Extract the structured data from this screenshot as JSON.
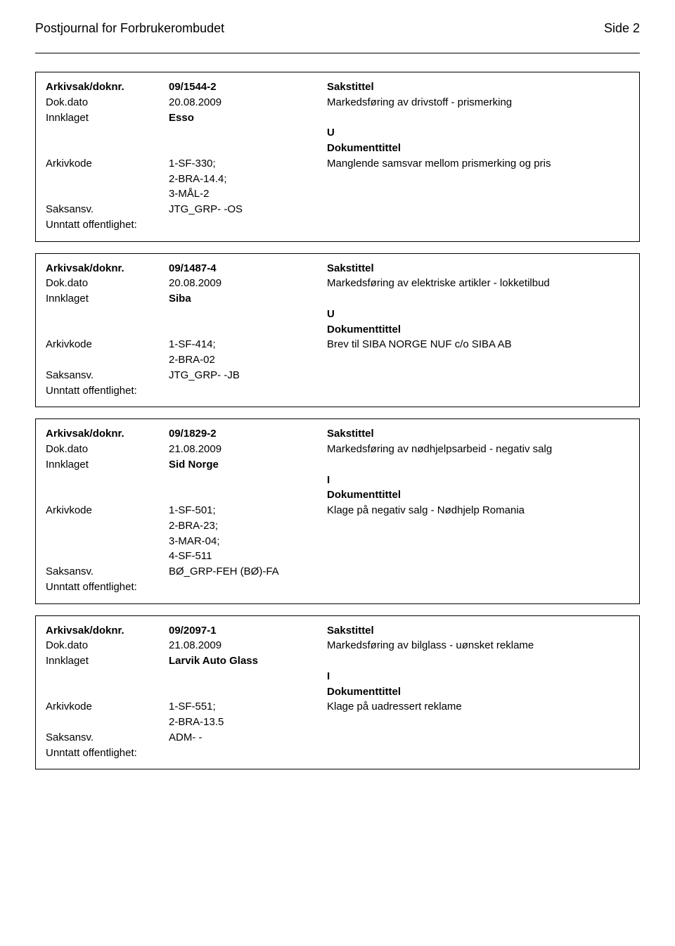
{
  "header": {
    "title": "Postjournal for Forbrukerombudet",
    "page_label": "Side 2"
  },
  "labels": {
    "arkivsak": "Arkivsak/doknr.",
    "dokdato": "Dok.dato",
    "innklaget": "Innklaget",
    "arkivkode": "Arkivkode",
    "saksansv": "Saksansv.",
    "unntatt": "Unntatt offentlighet:",
    "sakstittel": "Sakstittel",
    "dokumenttittel": "Dokumenttittel"
  },
  "records": [
    {
      "doknr": "09/1544-2",
      "dokdato": "20.08.2009",
      "innklaget": "Esso",
      "direction": "U",
      "arkivkode": "1-SF-330;\n2-BRA-14.4;\n3-MÅL-2",
      "saksansv": "JTG_GRP- -OS",
      "sakstittel": "Markedsføring av drivstoff - prismerking",
      "dokumenttittel": "Manglende samsvar mellom prismerking og pris"
    },
    {
      "doknr": "09/1487-4",
      "dokdato": "20.08.2009",
      "innklaget": "Siba",
      "direction": "U",
      "arkivkode": "1-SF-414;\n2-BRA-02",
      "saksansv": "JTG_GRP- -JB",
      "sakstittel": "Markedsføring av elektriske artikler - lokketilbud",
      "dokumenttittel": "Brev til SIBA NORGE NUF c/o SIBA AB"
    },
    {
      "doknr": "09/1829-2",
      "dokdato": "21.08.2009",
      "innklaget": "Sid Norge",
      "direction": "I",
      "arkivkode": "1-SF-501;\n2-BRA-23;\n3-MAR-04;\n4-SF-511",
      "saksansv": "BØ_GRP-FEH (BØ)-FA",
      "sakstittel": "Markedsføring av nødhjelpsarbeid - negativ salg",
      "dokumenttittel": "Klage på negativ salg - Nødhjelp Romania"
    },
    {
      "doknr": "09/2097-1",
      "dokdato": "21.08.2009",
      "innklaget": "Larvik Auto Glass",
      "direction": "I",
      "arkivkode": "1-SF-551;\n2-BRA-13.5",
      "saksansv": "ADM- -",
      "sakstittel": "Markedsføring av bilglass - uønsket reklame",
      "dokumenttittel": "Klage på uadressert reklame"
    }
  ]
}
